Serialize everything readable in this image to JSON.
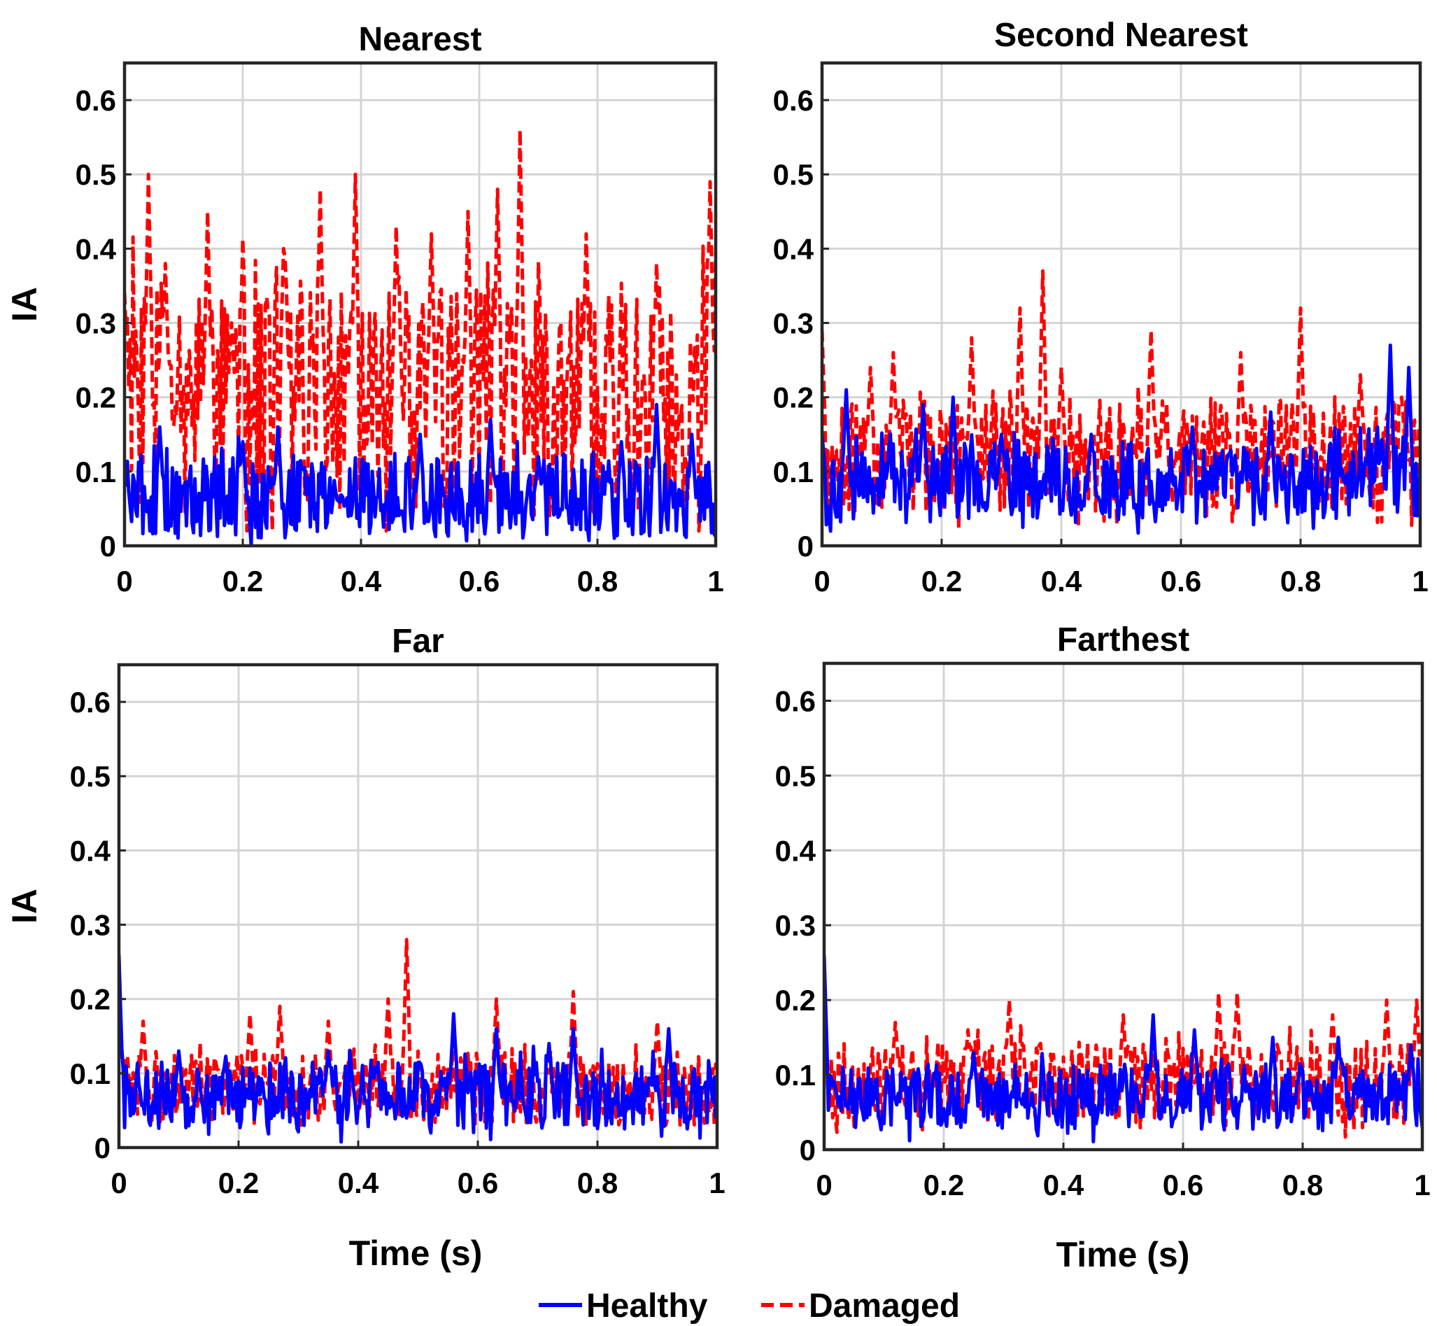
{
  "figure": {
    "xlabel": "Time (s)",
    "ylabel": "IA",
    "legend": {
      "placement": "bottom-center",
      "entries": [
        {
          "label": "Healthy",
          "color": "#0000ff",
          "style": "solid"
        },
        {
          "label": "Damaged",
          "color": "#ff0000",
          "style": "dashed"
        }
      ]
    }
  },
  "chart_data": [
    {
      "type": "line",
      "title": "Nearest",
      "xlabel": "",
      "ylabel": "IA",
      "xlim": [
        0,
        1
      ],
      "ylim": [
        0,
        0.65
      ],
      "xticks": [
        0,
        0.2,
        0.4,
        0.6,
        0.8,
        1
      ],
      "xtick_labels": [
        "0",
        "0.2",
        "0.4",
        "0.6",
        "0.8",
        "1"
      ],
      "yticks": [
        0,
        0.1,
        0.2,
        0.3,
        0.4,
        0.5,
        0.6
      ],
      "ytick_labels": [
        "0",
        "0.1",
        "0.2",
        "0.3",
        "0.4",
        "0.5",
        "0.6"
      ],
      "grid": true,
      "series": [
        {
          "name": "Healthy",
          "color": "#0000ff",
          "style": "solid",
          "envelope": {
            "base": 0.065,
            "amp": 0.055,
            "min": 0.0,
            "max": 0.19
          },
          "peaks": [
            [
              0.0,
              0.09
            ],
            [
              0.06,
              0.16
            ],
            [
              0.2,
              0.14
            ],
            [
              0.26,
              0.16
            ],
            [
              0.5,
              0.15
            ],
            [
              0.62,
              0.17
            ],
            [
              0.7,
              0.12
            ],
            [
              0.84,
              0.14
            ],
            [
              0.9,
              0.19
            ],
            [
              0.96,
              0.15
            ]
          ]
        },
        {
          "name": "Damaged",
          "color": "#ff0000",
          "style": "dashed",
          "envelope": {
            "base": 0.2,
            "amp": 0.16,
            "min": 0.02,
            "max": 0.56
          },
          "peaks": [
            [
              0.0,
              0.34
            ],
            [
              0.04,
              0.5
            ],
            [
              0.07,
              0.38
            ],
            [
              0.14,
              0.45
            ],
            [
              0.18,
              0.3
            ],
            [
              0.27,
              0.4
            ],
            [
              0.33,
              0.48
            ],
            [
              0.39,
              0.5
            ],
            [
              0.46,
              0.43
            ],
            [
              0.52,
              0.42
            ],
            [
              0.58,
              0.45
            ],
            [
              0.63,
              0.48
            ],
            [
              0.67,
              0.56
            ],
            [
              0.78,
              0.42
            ],
            [
              0.9,
              0.38
            ],
            [
              0.99,
              0.49
            ]
          ]
        }
      ]
    },
    {
      "type": "line",
      "title": "Second Nearest",
      "xlabel": "",
      "ylabel": "",
      "xlim": [
        0,
        1
      ],
      "ylim": [
        0,
        0.65
      ],
      "xticks": [
        0,
        0.2,
        0.4,
        0.6,
        0.8,
        1
      ],
      "xtick_labels": [
        "0",
        "0.2",
        "0.4",
        "0.6",
        "0.8",
        "1"
      ],
      "yticks": [
        0,
        0.1,
        0.2,
        0.3,
        0.4,
        0.5,
        0.6
      ],
      "ytick_labels": [
        "0",
        "0.1",
        "0.2",
        "0.3",
        "0.4",
        "0.5",
        "0.6"
      ],
      "grid": true,
      "series": [
        {
          "name": "Healthy",
          "color": "#0000ff",
          "style": "solid",
          "envelope": {
            "base": 0.085,
            "amp": 0.055,
            "min": 0.0,
            "max": 0.27
          },
          "peaks": [
            [
              0.0,
              0.15
            ],
            [
              0.04,
              0.21
            ],
            [
              0.17,
              0.19
            ],
            [
              0.22,
              0.2
            ],
            [
              0.3,
              0.15
            ],
            [
              0.45,
              0.15
            ],
            [
              0.62,
              0.16
            ],
            [
              0.75,
              0.18
            ],
            [
              0.95,
              0.27
            ],
            [
              0.98,
              0.24
            ]
          ]
        },
        {
          "name": "Damaged",
          "color": "#ff0000",
          "style": "dashed",
          "envelope": {
            "base": 0.12,
            "amp": 0.075,
            "min": 0.0,
            "max": 0.37
          },
          "peaks": [
            [
              0.0,
              0.29
            ],
            [
              0.08,
              0.24
            ],
            [
              0.12,
              0.26
            ],
            [
              0.25,
              0.28
            ],
            [
              0.33,
              0.32
            ],
            [
              0.37,
              0.37
            ],
            [
              0.4,
              0.24
            ],
            [
              0.55,
              0.29
            ],
            [
              0.7,
              0.26
            ],
            [
              0.8,
              0.32
            ],
            [
              0.9,
              0.23
            ],
            [
              0.97,
              0.2
            ]
          ]
        }
      ]
    },
    {
      "type": "line",
      "title": "Far",
      "xlabel": "Time (s)",
      "ylabel": "IA",
      "xlim": [
        0,
        1
      ],
      "ylim": [
        0,
        0.65
      ],
      "xticks": [
        0,
        0.2,
        0.4,
        0.6,
        0.8,
        1
      ],
      "xtick_labels": [
        "0",
        "0.2",
        "0.4",
        "0.6",
        "0.8",
        "1"
      ],
      "yticks": [
        0,
        0.1,
        0.2,
        0.3,
        0.4,
        0.5,
        0.6
      ],
      "ytick_labels": [
        "0",
        "0.1",
        "0.2",
        "0.3",
        "0.4",
        "0.5",
        "0.6"
      ],
      "grid": true,
      "series": [
        {
          "name": "Healthy",
          "color": "#0000ff",
          "style": "solid",
          "envelope": {
            "base": 0.07,
            "amp": 0.045,
            "min": 0.0,
            "max": 0.26
          },
          "peaks": [
            [
              0.0,
              0.26
            ],
            [
              0.1,
              0.13
            ],
            [
              0.35,
              0.13
            ],
            [
              0.56,
              0.18
            ],
            [
              0.63,
              0.16
            ],
            [
              0.72,
              0.14
            ],
            [
              0.76,
              0.16
            ],
            [
              0.92,
              0.16
            ]
          ]
        },
        {
          "name": "Damaged",
          "color": "#ff0000",
          "style": "dashed",
          "envelope": {
            "base": 0.08,
            "amp": 0.05,
            "min": 0.0,
            "max": 0.28
          },
          "peaks": [
            [
              0.0,
              0.18
            ],
            [
              0.04,
              0.17
            ],
            [
              0.22,
              0.18
            ],
            [
              0.27,
              0.19
            ],
            [
              0.35,
              0.17
            ],
            [
              0.45,
              0.2
            ],
            [
              0.48,
              0.28
            ],
            [
              0.63,
              0.2
            ],
            [
              0.76,
              0.21
            ],
            [
              0.9,
              0.17
            ]
          ]
        }
      ]
    },
    {
      "type": "line",
      "title": "Farthest",
      "xlabel": "Time (s)",
      "ylabel": "",
      "xlim": [
        0,
        1
      ],
      "ylim": [
        0,
        0.65
      ],
      "xticks": [
        0,
        0.2,
        0.4,
        0.6,
        0.8,
        1
      ],
      "xtick_labels": [
        "0",
        "0.2",
        "0.4",
        "0.6",
        "0.8",
        "1"
      ],
      "yticks": [
        0,
        0.1,
        0.2,
        0.3,
        0.4,
        0.5,
        0.6
      ],
      "ytick_labels": [
        "0",
        "0.1",
        "0.2",
        "0.3",
        "0.4",
        "0.5",
        "0.6"
      ],
      "grid": true,
      "series": [
        {
          "name": "Healthy",
          "color": "#0000ff",
          "style": "solid",
          "envelope": {
            "base": 0.07,
            "amp": 0.045,
            "min": 0.0,
            "max": 0.26
          },
          "peaks": [
            [
              0.0,
              0.26
            ],
            [
              0.25,
              0.13
            ],
            [
              0.55,
              0.18
            ],
            [
              0.62,
              0.16
            ],
            [
              0.75,
              0.15
            ],
            [
              0.86,
              0.15
            ],
            [
              0.98,
              0.14
            ]
          ]
        },
        {
          "name": "Damaged",
          "color": "#ff0000",
          "style": "dashed",
          "envelope": {
            "base": 0.09,
            "amp": 0.055,
            "min": 0.0,
            "max": 0.21
          },
          "peaks": [
            [
              0.0,
              0.16
            ],
            [
              0.12,
              0.17
            ],
            [
              0.24,
              0.16
            ],
            [
              0.31,
              0.2
            ],
            [
              0.5,
              0.18
            ],
            [
              0.66,
              0.21
            ],
            [
              0.69,
              0.21
            ],
            [
              0.85,
              0.18
            ],
            [
              0.94,
              0.2
            ],
            [
              0.99,
              0.2
            ]
          ]
        }
      ]
    }
  ]
}
